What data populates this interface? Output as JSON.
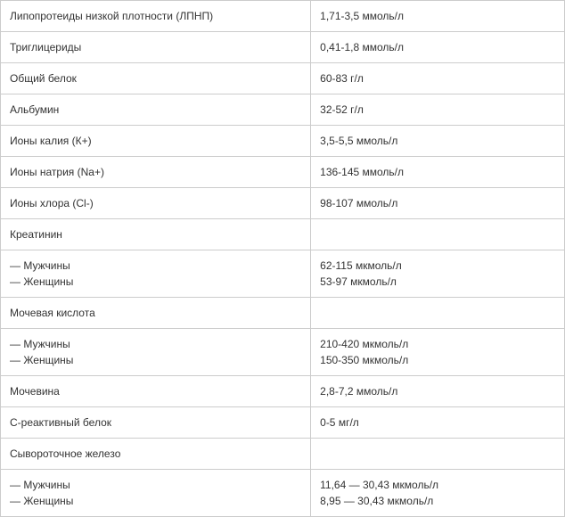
{
  "table": {
    "border_color": "#cccccc",
    "text_color": "#333333",
    "background_color": "#ffffff",
    "font_family": "Verdana, Arial, sans-serif",
    "font_size": 12,
    "col_widths": [
      "55%",
      "45%"
    ],
    "rows": [
      {
        "param": "Липопротеиды низкой плотности (ЛПНП)",
        "value": "1,71-3,5 ммоль/л"
      },
      {
        "param": "Триглицериды",
        "value": "0,41-1,8 ммоль/л"
      },
      {
        "param": "Общий белок",
        "value": "60-83 г/л"
      },
      {
        "param": "Альбумин",
        "value": "32-52 г/л"
      },
      {
        "param": "Ионы калия (К+)",
        "value": "3,5-5,5 ммоль/л"
      },
      {
        "param": "Ионы натрия (Na+)",
        "value": "136-145 ммоль/л"
      },
      {
        "param": "Ионы хлора (Сl-)",
        "value": "98-107 ммоль/л"
      },
      {
        "param": "Креатинин",
        "value": ""
      },
      {
        "param_lines": [
          "— Мужчины",
          "— Женщины"
        ],
        "value_lines": [
          "62-115 мкмоль/л",
          "53-97 мкмоль/л"
        ]
      },
      {
        "param": "Мочевая кислота",
        "value": ""
      },
      {
        "param_lines": [
          "— Мужчины",
          "— Женщины"
        ],
        "value_lines": [
          "210-420 мкмоль/л",
          "150-350 мкмоль/л"
        ]
      },
      {
        "param": "Мочевина",
        "value": "2,8-7,2 ммоль/л"
      },
      {
        "param": "С-реактивный белок",
        "value": "0-5 мг/л"
      },
      {
        "param": "Сывороточное железо",
        "value": ""
      },
      {
        "param_lines": [
          "— Мужчины",
          "— Женщины"
        ],
        "value_lines": [
          "11,64 — 30,43 мкмоль/л",
          "8,95 — 30,43 мкмоль/л"
        ]
      }
    ]
  }
}
